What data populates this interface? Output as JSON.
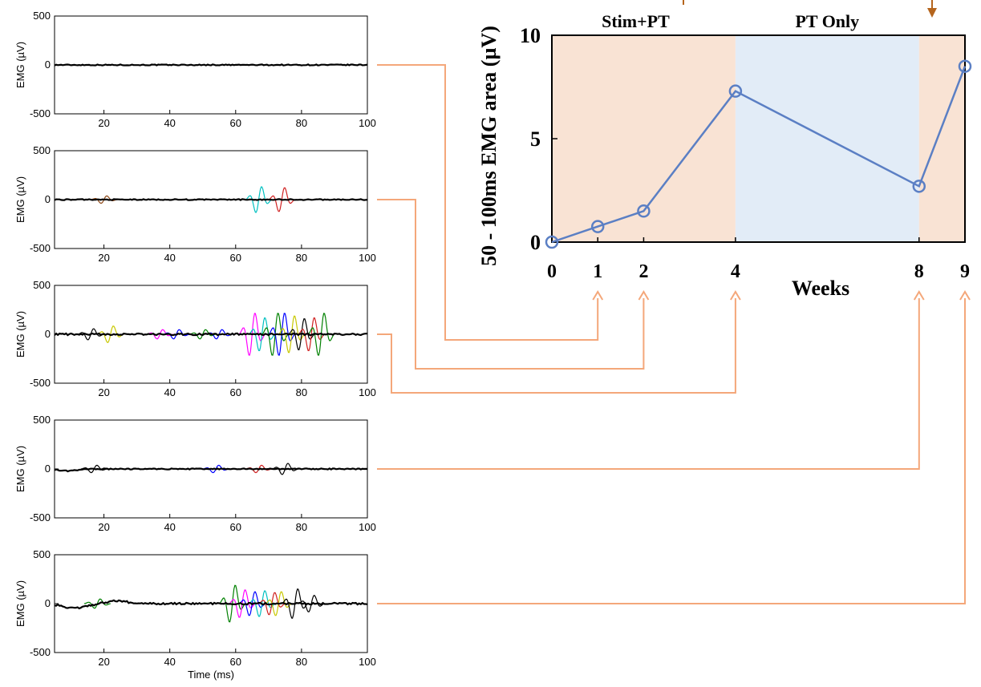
{
  "chart_data": [
    {
      "type": "line",
      "panel": "emg-trace-week-1",
      "ylabel": "EMG (µV)",
      "xlabel": "",
      "xlim": [
        5,
        100
      ],
      "ylim": [
        -500,
        500
      ],
      "xticks": [
        "20",
        "40",
        "60",
        "80",
        "100"
      ],
      "yticks": [
        "500",
        "0",
        "-500"
      ],
      "grid": false,
      "legend": "none",
      "activity": "minimal",
      "bursts": []
    },
    {
      "type": "line",
      "panel": "emg-trace-week-2",
      "ylabel": "EMG (µV)",
      "xlabel": "",
      "xlim": [
        5,
        100
      ],
      "ylim": [
        -500,
        500
      ],
      "xticks": [
        "20",
        "40",
        "60",
        "80",
        "100"
      ],
      "yticks": [
        "500",
        "0",
        "-500"
      ],
      "grid": false,
      "legend": "none",
      "activity": "small",
      "bursts": [
        {
          "center_ms": 20,
          "amplitude_uv": 40,
          "color": "#8b4513"
        },
        {
          "center_ms": 67,
          "amplitude_uv": 140,
          "color": "#00c0c0"
        },
        {
          "center_ms": 74,
          "amplitude_uv": 130,
          "color": "#d02020"
        }
      ]
    },
    {
      "type": "line",
      "panel": "emg-trace-week-4",
      "ylabel": "EMG (µV)",
      "xlabel": "",
      "xlim": [
        5,
        100
      ],
      "ylim": [
        -500,
        500
      ],
      "xticks": [
        "20",
        "40",
        "60",
        "80",
        "100"
      ],
      "yticks": [
        "500",
        "0",
        "-500"
      ],
      "grid": false,
      "legend": "none",
      "activity": "large",
      "bursts": [
        {
          "center_ms": 16,
          "amplitude_uv": 60,
          "color": "#000000"
        },
        {
          "center_ms": 22,
          "amplitude_uv": 90,
          "color": "#c8c800"
        },
        {
          "center_ms": 37,
          "amplitude_uv": 50,
          "color": "#ff00ff"
        },
        {
          "center_ms": 42,
          "amplitude_uv": 50,
          "color": "#0000ff"
        },
        {
          "center_ms": 50,
          "amplitude_uv": 50,
          "color": "#008000"
        },
        {
          "center_ms": 55,
          "amplitude_uv": 50,
          "color": "#0000ff"
        },
        {
          "center_ms": 65,
          "amplitude_uv": 230,
          "color": "#ff00ff"
        },
        {
          "center_ms": 68,
          "amplitude_uv": 180,
          "color": "#00c0c0"
        },
        {
          "center_ms": 72,
          "amplitude_uv": 230,
          "color": "#008000"
        },
        {
          "center_ms": 74,
          "amplitude_uv": 230,
          "color": "#0000ff"
        },
        {
          "center_ms": 77,
          "amplitude_uv": 200,
          "color": "#c8c800"
        },
        {
          "center_ms": 80,
          "amplitude_uv": 170,
          "color": "#000000"
        },
        {
          "center_ms": 83,
          "amplitude_uv": 180,
          "color": "#d02020"
        },
        {
          "center_ms": 86,
          "amplitude_uv": 230,
          "color": "#008000"
        }
      ]
    },
    {
      "type": "line",
      "panel": "emg-trace-week-8",
      "ylabel": "EMG (µV)",
      "xlabel": "",
      "xlim": [
        5,
        100
      ],
      "ylim": [
        -500,
        500
      ],
      "xticks": [
        "20",
        "40",
        "60",
        "80",
        "100"
      ],
      "yticks": [
        "500",
        "0",
        "-500"
      ],
      "grid": false,
      "legend": "none",
      "activity": "small",
      "bursts": [
        {
          "center_ms": 17,
          "amplitude_uv": 40,
          "color": "#000000"
        },
        {
          "center_ms": 54,
          "amplitude_uv": 40,
          "color": "#0000ff"
        },
        {
          "center_ms": 67,
          "amplitude_uv": 40,
          "color": "#d02020"
        },
        {
          "center_ms": 75,
          "amplitude_uv": 60,
          "color": "#000000"
        }
      ]
    },
    {
      "type": "line",
      "panel": "emg-trace-week-9",
      "ylabel": "EMG (µV)",
      "xlabel": "Time (ms)",
      "xlim": [
        5,
        100
      ],
      "ylim": [
        -500,
        500
      ],
      "xticks": [
        "20",
        "40",
        "60",
        "80",
        "100"
      ],
      "yticks": [
        "500",
        "0",
        "-500"
      ],
      "grid": false,
      "legend": "none",
      "activity": "large",
      "bursts": [
        {
          "center_ms": 18,
          "amplitude_uv": 50,
          "color": "#008000"
        },
        {
          "center_ms": 59,
          "amplitude_uv": 200,
          "color": "#008000"
        },
        {
          "center_ms": 62,
          "amplitude_uv": 150,
          "color": "#ff00ff"
        },
        {
          "center_ms": 65,
          "amplitude_uv": 130,
          "color": "#0000ff"
        },
        {
          "center_ms": 68,
          "amplitude_uv": 140,
          "color": "#00c0c0"
        },
        {
          "center_ms": 71,
          "amplitude_uv": 120,
          "color": "#d02020"
        },
        {
          "center_ms": 73,
          "amplitude_uv": 130,
          "color": "#c8c800"
        },
        {
          "center_ms": 78,
          "amplitude_uv": 160,
          "color": "#000000"
        },
        {
          "center_ms": 83,
          "amplitude_uv": 90,
          "color": "#000000"
        }
      ]
    },
    {
      "type": "line",
      "panel": "emg-area-timecourse",
      "title": "",
      "xlabel": "Weeks",
      "ylabel": "50 - 100ms EMG area (µV)",
      "x": [
        0,
        1,
        2,
        4,
        8,
        9
      ],
      "xlim": [
        0,
        9
      ],
      "ylim": [
        0,
        10
      ],
      "xticks": [
        "0",
        "1",
        "2",
        "4",
        "8",
        "9"
      ],
      "yticks": [
        "0",
        "5",
        "10"
      ],
      "grid": false,
      "legend": "none",
      "series": [
        {
          "values": [
            0.0,
            0.75,
            1.5,
            7.3,
            2.7,
            8.5
          ],
          "color": "#5b7fc4"
        }
      ],
      "regions": [
        {
          "label": "Stim+PT",
          "x0": 0,
          "x1": 4,
          "color": "#f9e3d4"
        },
        {
          "label": "PT Only",
          "x0": 4,
          "x1": 8,
          "color": "#e2ecf7"
        },
        {
          "label": "",
          "x0": 8,
          "x1": 9,
          "color": "#f9e3d4"
        }
      ]
    }
  ],
  "connector_color": "#f4a77a",
  "top_arrow_color": "#b5651d"
}
